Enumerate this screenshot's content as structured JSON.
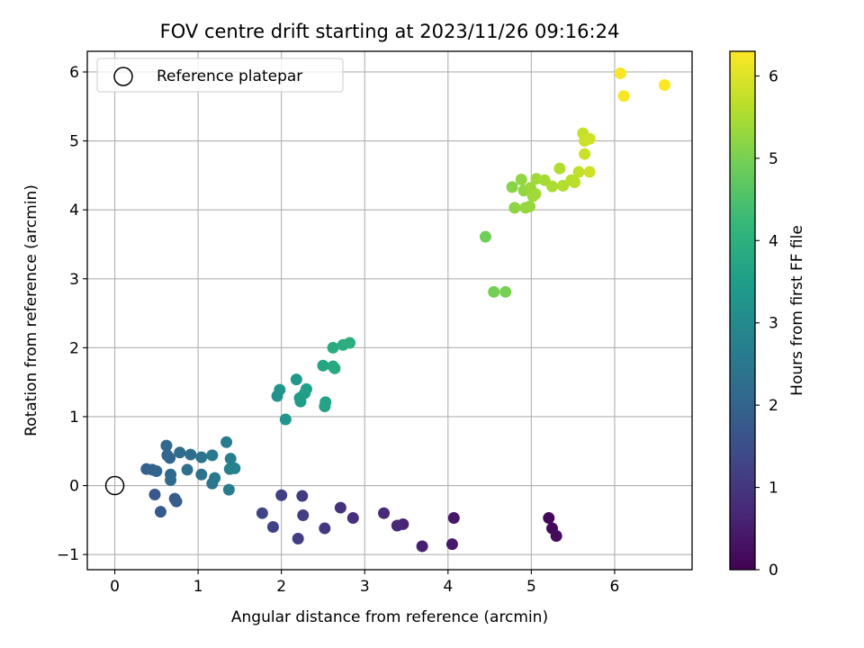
{
  "chart_data": {
    "type": "scatter",
    "title": "FOV centre drift starting at 2023/11/26 09:16:24",
    "xlabel": "Angular distance from reference (arcmin)",
    "ylabel": "Rotation from reference (arcmin)",
    "xlim": [
      -0.33,
      6.93
    ],
    "ylim": [
      -1.22,
      6.3
    ],
    "xticks": [
      0,
      1,
      2,
      3,
      4,
      5,
      6
    ],
    "yticks": [
      -1,
      0,
      1,
      2,
      3,
      4,
      5,
      6
    ],
    "grid": true,
    "legend": {
      "placement": "upper-left",
      "label": "Reference platepar"
    },
    "reference_point": {
      "x": 0,
      "y": 0
    },
    "colorbar": {
      "label": "Hours from first FF file",
      "colormap": "viridis",
      "range": [
        0,
        6.3
      ],
      "ticks": [
        0,
        1,
        2,
        3,
        4,
        5,
        6
      ]
    },
    "points": [
      {
        "x": 5.21,
        "y": -0.47,
        "c": 0.1
      },
      {
        "x": 5.25,
        "y": -0.62,
        "c": 0.15
      },
      {
        "x": 5.3,
        "y": -0.73,
        "c": 0.2
      },
      {
        "x": 4.07,
        "y": -0.47,
        "c": 0.4
      },
      {
        "x": 4.05,
        "y": -0.85,
        "c": 0.45
      },
      {
        "x": 3.69,
        "y": -0.88,
        "c": 0.55
      },
      {
        "x": 3.46,
        "y": -0.56,
        "c": 0.65
      },
      {
        "x": 3.39,
        "y": -0.58,
        "c": 0.7
      },
      {
        "x": 3.23,
        "y": -0.4,
        "c": 0.75
      },
      {
        "x": 2.86,
        "y": -0.47,
        "c": 0.85
      },
      {
        "x": 2.71,
        "y": -0.32,
        "c": 0.9
      },
      {
        "x": 2.52,
        "y": -0.62,
        "c": 1.0
      },
      {
        "x": 2.25,
        "y": -0.15,
        "c": 1.1
      },
      {
        "x": 2.26,
        "y": -0.43,
        "c": 1.15
      },
      {
        "x": 2.2,
        "y": -0.77,
        "c": 1.15
      },
      {
        "x": 2.0,
        "y": -0.14,
        "c": 1.2
      },
      {
        "x": 1.9,
        "y": -0.6,
        "c": 1.25
      },
      {
        "x": 1.77,
        "y": -0.4,
        "c": 1.3
      },
      {
        "x": 0.48,
        "y": -0.13,
        "c": 1.7
      },
      {
        "x": 0.55,
        "y": -0.38,
        "c": 1.75
      },
      {
        "x": 0.72,
        "y": -0.19,
        "c": 1.8
      },
      {
        "x": 0.74,
        "y": -0.23,
        "c": 1.85
      },
      {
        "x": 0.38,
        "y": 0.24,
        "c": 1.9
      },
      {
        "x": 0.45,
        "y": 0.23,
        "c": 1.95
      },
      {
        "x": 0.5,
        "y": 0.21,
        "c": 2.0
      },
      {
        "x": 0.63,
        "y": 0.44,
        "c": 2.05
      },
      {
        "x": 0.66,
        "y": 0.4,
        "c": 2.05
      },
      {
        "x": 0.62,
        "y": 0.58,
        "c": 2.1
      },
      {
        "x": 0.67,
        "y": 0.16,
        "c": 2.1
      },
      {
        "x": 0.67,
        "y": 0.08,
        "c": 2.15
      },
      {
        "x": 0.78,
        "y": 0.48,
        "c": 2.2
      },
      {
        "x": 0.87,
        "y": 0.23,
        "c": 2.25
      },
      {
        "x": 0.91,
        "y": 0.45,
        "c": 2.3
      },
      {
        "x": 1.04,
        "y": 0.16,
        "c": 2.35
      },
      {
        "x": 1.04,
        "y": 0.41,
        "c": 2.4
      },
      {
        "x": 1.17,
        "y": 0.03,
        "c": 2.45
      },
      {
        "x": 1.2,
        "y": 0.11,
        "c": 2.5
      },
      {
        "x": 1.17,
        "y": 0.44,
        "c": 2.55
      },
      {
        "x": 1.34,
        "y": 0.63,
        "c": 2.6
      },
      {
        "x": 1.37,
        "y": -0.06,
        "c": 2.65
      },
      {
        "x": 1.39,
        "y": 0.39,
        "c": 2.7
      },
      {
        "x": 1.38,
        "y": 0.24,
        "c": 2.75
      },
      {
        "x": 1.44,
        "y": 0.25,
        "c": 2.8
      },
      {
        "x": 1.95,
        "y": 1.3,
        "c": 3.2
      },
      {
        "x": 1.98,
        "y": 1.39,
        "c": 3.25
      },
      {
        "x": 2.05,
        "y": 0.96,
        "c": 3.3
      },
      {
        "x": 2.18,
        "y": 1.54,
        "c": 3.35
      },
      {
        "x": 2.22,
        "y": 1.27,
        "c": 3.4
      },
      {
        "x": 2.23,
        "y": 1.22,
        "c": 3.45
      },
      {
        "x": 2.28,
        "y": 1.34,
        "c": 3.5
      },
      {
        "x": 2.3,
        "y": 1.4,
        "c": 3.55
      },
      {
        "x": 2.52,
        "y": 1.15,
        "c": 3.6
      },
      {
        "x": 2.53,
        "y": 1.21,
        "c": 3.65
      },
      {
        "x": 2.5,
        "y": 1.74,
        "c": 3.7
      },
      {
        "x": 2.62,
        "y": 1.73,
        "c": 3.75
      },
      {
        "x": 2.64,
        "y": 1.7,
        "c": 3.8
      },
      {
        "x": 2.62,
        "y": 2.0,
        "c": 3.85
      },
      {
        "x": 2.74,
        "y": 2.04,
        "c": 3.9
      },
      {
        "x": 2.82,
        "y": 2.07,
        "c": 3.95
      },
      {
        "x": 4.45,
        "y": 3.61,
        "c": 4.9
      },
      {
        "x": 4.55,
        "y": 2.81,
        "c": 4.95
      },
      {
        "x": 4.69,
        "y": 2.81,
        "c": 5.0
      },
      {
        "x": 4.77,
        "y": 4.33,
        "c": 5.15
      },
      {
        "x": 4.8,
        "y": 4.03,
        "c": 5.2
      },
      {
        "x": 4.88,
        "y": 4.44,
        "c": 5.25
      },
      {
        "x": 4.91,
        "y": 4.28,
        "c": 5.25
      },
      {
        "x": 4.93,
        "y": 4.03,
        "c": 5.3
      },
      {
        "x": 4.98,
        "y": 4.05,
        "c": 5.3
      },
      {
        "x": 4.99,
        "y": 4.32,
        "c": 5.35
      },
      {
        "x": 5.02,
        "y": 4.2,
        "c": 5.35
      },
      {
        "x": 5.05,
        "y": 4.23,
        "c": 5.4
      },
      {
        "x": 5.06,
        "y": 4.45,
        "c": 5.4
      },
      {
        "x": 5.16,
        "y": 4.43,
        "c": 5.45
      },
      {
        "x": 5.25,
        "y": 4.34,
        "c": 5.5
      },
      {
        "x": 5.34,
        "y": 4.6,
        "c": 5.55
      },
      {
        "x": 5.38,
        "y": 4.35,
        "c": 5.55
      },
      {
        "x": 5.48,
        "y": 4.43,
        "c": 5.6
      },
      {
        "x": 5.52,
        "y": 4.4,
        "c": 5.65
      },
      {
        "x": 5.57,
        "y": 4.55,
        "c": 5.7
      },
      {
        "x": 5.62,
        "y": 5.11,
        "c": 5.75
      },
      {
        "x": 5.64,
        "y": 5.0,
        "c": 5.8
      },
      {
        "x": 5.64,
        "y": 4.81,
        "c": 5.8
      },
      {
        "x": 5.7,
        "y": 5.03,
        "c": 5.85
      },
      {
        "x": 5.7,
        "y": 4.55,
        "c": 5.85
      },
      {
        "x": 6.07,
        "y": 5.98,
        "c": 6.25
      },
      {
        "x": 6.11,
        "y": 5.65,
        "c": 6.25
      },
      {
        "x": 6.6,
        "y": 5.81,
        "c": 6.3
      }
    ]
  }
}
